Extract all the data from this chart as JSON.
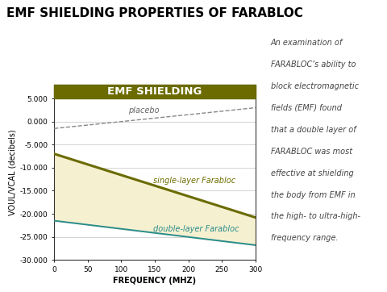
{
  "title": "EMF SHIELDING PROPERTIES OF FARABLOC",
  "xlabel": "FREQUENCY (MHZ)",
  "ylabel": "VOUL/VCAL (decibels)",
  "chart_label": "EMF SHIELDING",
  "xlim": [
    0,
    300
  ],
  "ylim": [
    -30,
    8
  ],
  "xticks": [
    0,
    50,
    100,
    150,
    200,
    250,
    300
  ],
  "yticks": [
    5.0,
    0.0,
    -5.0,
    -10.0,
    -15.0,
    -20.0,
    -25.0,
    -30.0
  ],
  "placebo": {
    "x": [
      0,
      300
    ],
    "y": [
      -1.5,
      3.0
    ],
    "color": "#888888",
    "label": "placebo",
    "linestyle": "dashed",
    "linewidth": 1.0
  },
  "single_layer": {
    "x": [
      0,
      300
    ],
    "y": [
      -7.0,
      -20.8
    ],
    "color": "#6b6b00",
    "label": "single-layer Farabloc",
    "linewidth": 2.2
  },
  "double_layer": {
    "x": [
      0,
      300
    ],
    "y": [
      -21.5,
      -26.8
    ],
    "color": "#2a8c8c",
    "label": "double-layer Farabloc",
    "linewidth": 1.4
  },
  "fill_between_color": "#f5f0d0",
  "header_bg": "#6b6b00",
  "header_text_color": "#ffffff",
  "annotation_lines": [
    "An examination of",
    "FARABLOC’s ability to",
    "block electromagnetic",
    "fields (EMF) found",
    "that a double layer of",
    "FARABLOC was most",
    "effective at shielding",
    "the body from EMF in",
    "the high- to ultra-high-",
    "frequency range."
  ],
  "annotation_fontsize": 7.0,
  "title_fontsize": 11,
  "axis_label_fontsize": 7,
  "tick_fontsize": 6.5,
  "chart_label_fontsize": 9.5
}
